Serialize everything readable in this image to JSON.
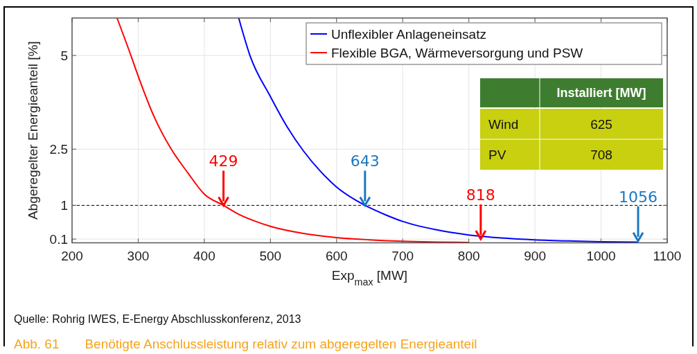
{
  "chart_data": {
    "type": "line",
    "title": "Abb. 61       Benötigte Anschlussleistung relativ zum abgeregelten Energieanteil",
    "xlabel": "Exp$_{max}$ [MW]",
    "ylabel": "Abgeregelter Energieanteil [%]",
    "xlim": [
      200,
      1100
    ],
    "xticks": [
      200,
      300,
      400,
      500,
      600,
      700,
      800,
      900,
      1000,
      1100
    ],
    "ylim": [
      0,
      6
    ],
    "yticks": [
      0.1,
      1,
      2.5,
      5
    ],
    "grid": true,
    "legend": "top right",
    "line_style": "solid",
    "marker": "none",
    "series": [
      {
        "name": "Unflexibler Anlageneinsatz",
        "color": "#0000ff",
        "x": [
          452,
          469,
          500,
          525,
          550,
          575,
          600,
          625,
          643,
          675,
          700,
          750,
          800,
          850,
          900,
          950,
          1000,
          1056
        ],
        "values": [
          6,
          5,
          3.9,
          3.1,
          2.45,
          1.92,
          1.49,
          1.18,
          1,
          0.74,
          0.57,
          0.35,
          0.21,
          0.13,
          0.08,
          0.05,
          0.03,
          0.02
        ]
      },
      {
        "name": "Flexible BGA, Wärmeversorgung und PSW",
        "color": "#ff0000",
        "x": [
          268,
          289,
          300,
          325,
          350,
          375,
          400,
          429,
          450,
          475,
          500,
          550,
          600,
          650,
          700,
          800
        ],
        "values": [
          6,
          5,
          4.45,
          3.33,
          2.5,
          1.87,
          1.3,
          1,
          0.78,
          0.59,
          0.44,
          0.25,
          0.14,
          0.08,
          0.04,
          0.01
        ]
      }
    ],
    "ref_lines": [
      {
        "axis": "y",
        "value": 1,
        "line_style": "dashed",
        "color": "#000000"
      }
    ],
    "annotations": [
      {
        "text": "429",
        "x": 429,
        "y": 1
      },
      {
        "text": "643",
        "x": 643,
        "y": 1
      },
      {
        "text": "818",
        "x": 818,
        "y": 0.1
      },
      {
        "text": "1056",
        "x": 1056,
        "y": 0.05
      },
      "Installiert [MW]",
      "Wind",
      "625",
      "PV",
      "708",
      "Quelle: Rohrig IWES, E-Energy Abschlusskonferenz, 2013"
    ]
  }
}
